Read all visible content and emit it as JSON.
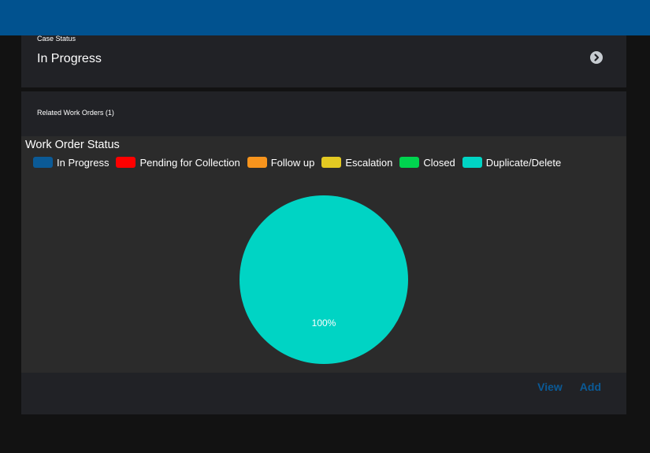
{
  "case_status": {
    "label": "Case Status",
    "value": "In Progress",
    "chevron_icon": "chevron-right-circle-icon"
  },
  "work_orders": {
    "label": "Related Work Orders (1)",
    "actions": {
      "view": "View",
      "add": "Add"
    },
    "link_color": "#0b5a96"
  },
  "colors": {
    "header": "#01528f",
    "card": "#212226",
    "chart_bg": "#2b2b2b",
    "page_bg": "#121212"
  },
  "chart_data": {
    "type": "pie",
    "title": "Work Order Status",
    "categories": [
      "In Progress",
      "Pending for Collection",
      "Follow up",
      "Escalation",
      "Closed",
      "Duplicate/Delete"
    ],
    "colors": [
      "#0b5a96",
      "#ff0000",
      "#f7941d",
      "#e3c922",
      "#00d44f",
      "#00d4c4"
    ],
    "values": [
      0,
      0,
      0,
      0,
      0,
      1
    ],
    "data_labels": [
      "",
      "",
      "",
      "",
      "",
      "100%"
    ],
    "legend": "top-left"
  }
}
